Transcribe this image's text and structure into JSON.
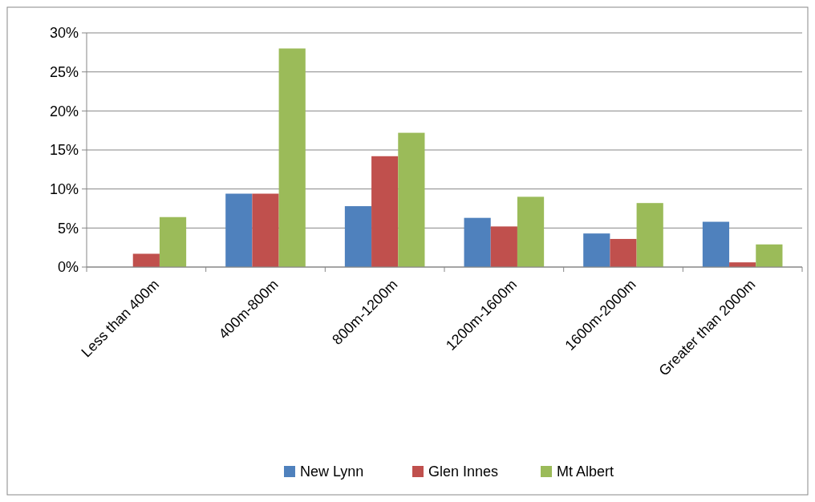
{
  "chart_data": {
    "type": "bar",
    "categories": [
      "Less than 400m",
      "400m-800m",
      "800m-1200m",
      "1200m-1600m",
      "1600m-2000m",
      "Greater than 2000m"
    ],
    "series": [
      {
        "name": "New Lynn",
        "color": "#4f81bd",
        "values": [
          0,
          9.4,
          7.8,
          6.3,
          4.3,
          5.8
        ]
      },
      {
        "name": "Glen Innes",
        "color": "#c0504d",
        "values": [
          1.7,
          9.4,
          14.2,
          5.2,
          3.6,
          0.6
        ]
      },
      {
        "name": "Mt Albert",
        "color": "#9bbb59",
        "values": [
          6.4,
          28.0,
          17.2,
          9.0,
          8.2,
          2.9
        ]
      }
    ],
    "ylim": [
      0,
      30
    ],
    "yticks": [
      {
        "value": 0,
        "label": "0%"
      },
      {
        "value": 5,
        "label": "5%"
      },
      {
        "value": 10,
        "label": "10%"
      },
      {
        "value": 15,
        "label": "15%"
      },
      {
        "value": 20,
        "label": "20%"
      },
      {
        "value": 25,
        "label": "25%"
      },
      {
        "value": 30,
        "label": "30%"
      }
    ],
    "grid": "y",
    "legend": "bottom"
  }
}
